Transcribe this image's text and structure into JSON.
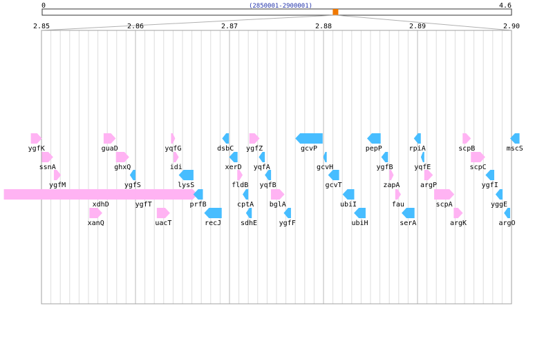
{
  "overview": {
    "start_label": "0",
    "end_label": "4.6",
    "region_label": "(2850001-2900001)",
    "min": 0,
    "max": 4.6,
    "region_center": 2.875,
    "marker_color": "#f07800",
    "region_label_color": "#2233aa"
  },
  "ruler": {
    "min": 2.85,
    "max": 2.9,
    "ticks": [
      "2.85",
      "2.86",
      "2.87",
      "2.88",
      "2.89",
      "2.90"
    ],
    "tick_values": [
      2.85,
      2.86,
      2.87,
      2.88,
      2.89,
      2.9
    ]
  },
  "colors": {
    "forward": "#ffb3f3",
    "reverse": "#47bdff",
    "minor_grid": "#dddddd",
    "major_grid": "#b8b8b8",
    "frame": "#a0a0a0"
  },
  "genes": [
    {
      "name": "ygfK",
      "start": 2.84887,
      "end": 2.85005,
      "strand": "+",
      "row": 0
    },
    {
      "name": "ssnA",
      "start": 2.85004,
      "end": 2.85124,
      "strand": "+",
      "row": 1
    },
    {
      "name": "ygfM",
      "start": 2.85132,
      "end": 2.85208,
      "strand": "+",
      "row": 2
    },
    {
      "name": "xdhD",
      "start": 2.846,
      "end": 2.8666,
      "strand": "+",
      "row": 3
    },
    {
      "name": "xanQ",
      "start": 2.8551,
      "end": 2.85647,
      "strand": "+",
      "row": 4
    },
    {
      "name": "guaD",
      "start": 2.85661,
      "end": 2.8579,
      "strand": "+",
      "row": 0
    },
    {
      "name": "ghxQ",
      "start": 2.85792,
      "end": 2.85933,
      "strand": "+",
      "row": 1
    },
    {
      "name": "ygfS",
      "start": 2.8594,
      "end": 2.86,
      "strand": "-",
      "row": 2
    },
    {
      "name": "ygfT",
      "start": 2.85996,
      "end": 2.86176,
      "strand": "+",
      "row": 3
    },
    {
      "name": "uacT",
      "start": 2.86227,
      "end": 2.86367,
      "strand": "+",
      "row": 4
    },
    {
      "name": "yqfG",
      "start": 2.86378,
      "end": 2.86422,
      "strand": "+",
      "row": 0
    },
    {
      "name": "idi",
      "start": 2.86405,
      "end": 2.8646,
      "strand": "+",
      "row": 1
    },
    {
      "name": "lysS",
      "start": 2.8646,
      "end": 2.86617,
      "strand": "-",
      "row": 2
    },
    {
      "name": "prfB",
      "start": 2.86615,
      "end": 2.86717,
      "strand": "-",
      "row": 3
    },
    {
      "name": "recJ",
      "start": 2.86731,
      "end": 2.86917,
      "strand": "-",
      "row": 4
    },
    {
      "name": "dsbC",
      "start": 2.86922,
      "end": 2.86993,
      "strand": "-",
      "row": 0
    },
    {
      "name": "xerD",
      "start": 2.86996,
      "end": 2.87086,
      "strand": "-",
      "row": 1
    },
    {
      "name": "fldB",
      "start": 2.87083,
      "end": 2.8714,
      "strand": "+",
      "row": 2
    },
    {
      "name": "cptA",
      "start": 2.8714,
      "end": 2.872,
      "strand": "-",
      "row": 3
    },
    {
      "name": "sdhE",
      "start": 2.87175,
      "end": 2.87237,
      "strand": "-",
      "row": 4
    },
    {
      "name": "ygfZ",
      "start": 2.87211,
      "end": 2.8732,
      "strand": "+",
      "row": 0
    },
    {
      "name": "yqfA",
      "start": 2.87312,
      "end": 2.87376,
      "strand": "-",
      "row": 1
    },
    {
      "name": "yqfB",
      "start": 2.87376,
      "end": 2.87442,
      "strand": "-",
      "row": 2
    },
    {
      "name": "bglA",
      "start": 2.87441,
      "end": 2.87585,
      "strand": "+",
      "row": 3
    },
    {
      "name": "ygfF",
      "start": 2.87577,
      "end": 2.87654,
      "strand": "-",
      "row": 4
    },
    {
      "name": "gcvP",
      "start": 2.877,
      "end": 2.87991,
      "strand": "-",
      "row": 0
    },
    {
      "name": "gcvH",
      "start": 2.87997,
      "end": 2.88034,
      "strand": "-",
      "row": 1
    },
    {
      "name": "gcvT",
      "start": 2.88049,
      "end": 2.88166,
      "strand": "-",
      "row": 2
    },
    {
      "name": "ubiI",
      "start": 2.88203,
      "end": 2.88327,
      "strand": "-",
      "row": 3
    },
    {
      "name": "ubiH",
      "start": 2.88324,
      "end": 2.88448,
      "strand": "-",
      "row": 4
    },
    {
      "name": "pepP",
      "start": 2.88463,
      "end": 2.88608,
      "strand": "-",
      "row": 0
    },
    {
      "name": "ygfB",
      "start": 2.88615,
      "end": 2.88686,
      "strand": "-",
      "row": 1
    },
    {
      "name": "zapA",
      "start": 2.88701,
      "end": 2.88746,
      "strand": "+",
      "row": 2
    },
    {
      "name": "fau",
      "start": 2.88763,
      "end": 2.88824,
      "strand": "+",
      "row": 3
    },
    {
      "name": "serA",
      "start": 2.88831,
      "end": 2.88968,
      "strand": "-",
      "row": 4
    },
    {
      "name": "rpiA",
      "start": 2.88961,
      "end": 2.89035,
      "strand": "-",
      "row": 0
    },
    {
      "name": "yqfE",
      "start": 2.89036,
      "end": 2.89072,
      "strand": "-",
      "row": 1
    },
    {
      "name": "argP",
      "start": 2.89072,
      "end": 2.89164,
      "strand": "+",
      "row": 2
    },
    {
      "name": "scpA",
      "start": 2.89177,
      "end": 2.89391,
      "strand": "+",
      "row": 3
    },
    {
      "name": "argK",
      "start": 2.89385,
      "end": 2.89482,
      "strand": "+",
      "row": 4
    },
    {
      "name": "scpB",
      "start": 2.8948,
      "end": 2.89568,
      "strand": "+",
      "row": 0
    },
    {
      "name": "scpC",
      "start": 2.89568,
      "end": 2.8972,
      "strand": "+",
      "row": 1
    },
    {
      "name": "ygfI",
      "start": 2.89723,
      "end": 2.89816,
      "strand": "-",
      "row": 2
    },
    {
      "name": "yggE",
      "start": 2.8983,
      "end": 2.89905,
      "strand": "-",
      "row": 3
    },
    {
      "name": "argO",
      "start": 2.8992,
      "end": 2.89985,
      "strand": "-",
      "row": 4
    },
    {
      "name": "mscS",
      "start": 2.89985,
      "end": 2.90085,
      "strand": "-",
      "row": 0
    }
  ]
}
